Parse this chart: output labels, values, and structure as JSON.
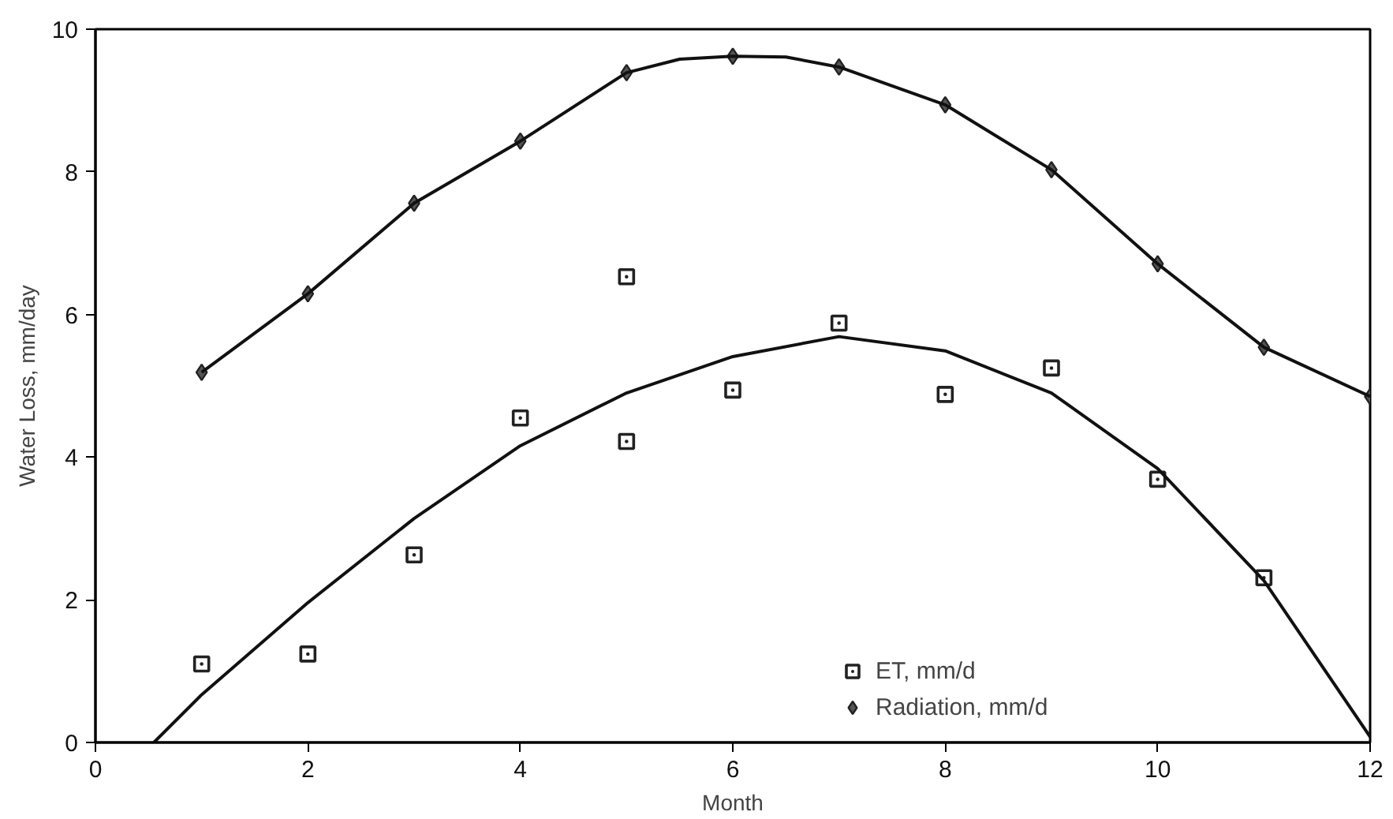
{
  "chart_data": {
    "type": "scatter",
    "xlabel": "Month",
    "ylabel": "Water Loss, mm/day",
    "xlim": [
      0,
      12
    ],
    "ylim": [
      0,
      10
    ],
    "xticks": [
      0,
      2,
      4,
      6,
      8,
      10,
      12
    ],
    "yticks": [
      0,
      2,
      4,
      6,
      8,
      10
    ],
    "grid": false,
    "legend": "bottom",
    "series": [
      {
        "name": "ET, mm/d",
        "color": "#222222",
        "marker": "square",
        "x": [
          1,
          2,
          3,
          4,
          5,
          5,
          6,
          7,
          8,
          9,
          10,
          11
        ],
        "values": [
          1.1,
          1.24,
          2.63,
          4.55,
          4.22,
          6.53,
          4.94,
          5.88,
          4.88,
          5.25,
          3.69,
          2.31
        ]
      },
      {
        "name": "Radiation, mm/d",
        "color": "#222222",
        "marker": "diamond",
        "x": [
          1,
          2,
          3,
          4,
          5,
          6,
          7,
          8,
          9,
          10,
          11,
          12
        ],
        "values": [
          5.19,
          6.29,
          7.56,
          8.43,
          9.39,
          9.62,
          9.47,
          8.94,
          8.03,
          6.71,
          5.54,
          4.85
        ]
      },
      {
        "type": "line",
        "color": "#111111",
        "marker": "none",
        "line_style": "solid",
        "x": [
          0.55,
          1,
          2,
          3,
          4,
          5,
          6,
          7,
          8,
          9,
          10,
          11,
          12
        ],
        "values": [
          0,
          0.67,
          1.96,
          3.14,
          4.16,
          4.9,
          5.41,
          5.69,
          5.49,
          4.9,
          3.84,
          2.27,
          0.08
        ]
      },
      {
        "type": "line",
        "color": "#111111",
        "marker": "none",
        "line_style": "solid",
        "x": [
          1,
          2,
          3,
          4,
          5,
          5.5,
          6,
          6.5,
          7,
          8,
          9,
          10,
          11,
          12
        ],
        "values": [
          5.19,
          6.29,
          7.56,
          8.43,
          9.39,
          9.58,
          9.62,
          9.61,
          9.47,
          8.94,
          8.03,
          6.71,
          5.54,
          4.85
        ]
      }
    ]
  }
}
